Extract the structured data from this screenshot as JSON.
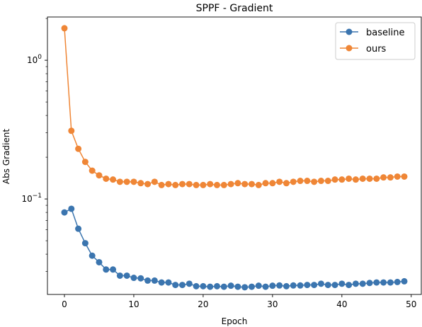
{
  "chart_data": {
    "type": "line",
    "title": "SPPF - Gradient",
    "xlabel": "Epoch",
    "ylabel": "Abs Gradient",
    "xlim": [
      -2.45,
      51.45
    ],
    "ylim": [
      0.0205,
      2.05
    ],
    "yscale": "log",
    "x_ticks": [
      0,
      10,
      20,
      30,
      40,
      50
    ],
    "y_ticks": [
      {
        "value": 1,
        "label": "10^0"
      },
      {
        "value": 0.1,
        "label": "10^-1"
      }
    ],
    "y_minor_ticks": [
      0.03,
      0.04,
      0.05,
      0.06,
      0.07,
      0.08,
      0.09,
      0.2,
      0.3,
      0.4,
      0.5,
      0.6,
      0.7,
      0.8,
      0.9,
      2
    ],
    "grid": false,
    "legend_position": "top-right",
    "x": [
      0,
      1,
      2,
      3,
      4,
      5,
      6,
      7,
      8,
      9,
      10,
      11,
      12,
      13,
      14,
      15,
      16,
      17,
      18,
      19,
      20,
      21,
      22,
      23,
      24,
      25,
      26,
      27,
      28,
      29,
      30,
      31,
      32,
      33,
      34,
      35,
      36,
      37,
      38,
      39,
      40,
      41,
      42,
      43,
      44,
      45,
      46,
      47,
      48,
      49
    ],
    "series": [
      {
        "name": "baseline",
        "color": "#3b75af",
        "values": [
          0.08,
          0.085,
          0.061,
          0.048,
          0.039,
          0.035,
          0.031,
          0.031,
          0.028,
          0.028,
          0.027,
          0.0268,
          0.0258,
          0.0258,
          0.025,
          0.025,
          0.024,
          0.024,
          0.0245,
          0.0235,
          0.0235,
          0.0233,
          0.0235,
          0.0233,
          0.0237,
          0.0233,
          0.0231,
          0.0233,
          0.0237,
          0.0233,
          0.0237,
          0.0238,
          0.0235,
          0.0238,
          0.0238,
          0.024,
          0.024,
          0.0245,
          0.024,
          0.024,
          0.0245,
          0.024,
          0.0245,
          0.0245,
          0.0248,
          0.025,
          0.025,
          0.025,
          0.0252,
          0.0255
        ]
      },
      {
        "name": "ours",
        "color": "#ef8636",
        "values": [
          1.7,
          0.31,
          0.23,
          0.185,
          0.16,
          0.148,
          0.14,
          0.138,
          0.133,
          0.133,
          0.133,
          0.13,
          0.128,
          0.133,
          0.126,
          0.128,
          0.126,
          0.128,
          0.128,
          0.126,
          0.126,
          0.128,
          0.126,
          0.126,
          0.128,
          0.13,
          0.128,
          0.128,
          0.126,
          0.13,
          0.13,
          0.133,
          0.13,
          0.133,
          0.135,
          0.135,
          0.133,
          0.135,
          0.135,
          0.138,
          0.138,
          0.14,
          0.138,
          0.14,
          0.14,
          0.14,
          0.143,
          0.143,
          0.145,
          0.145
        ]
      }
    ]
  }
}
